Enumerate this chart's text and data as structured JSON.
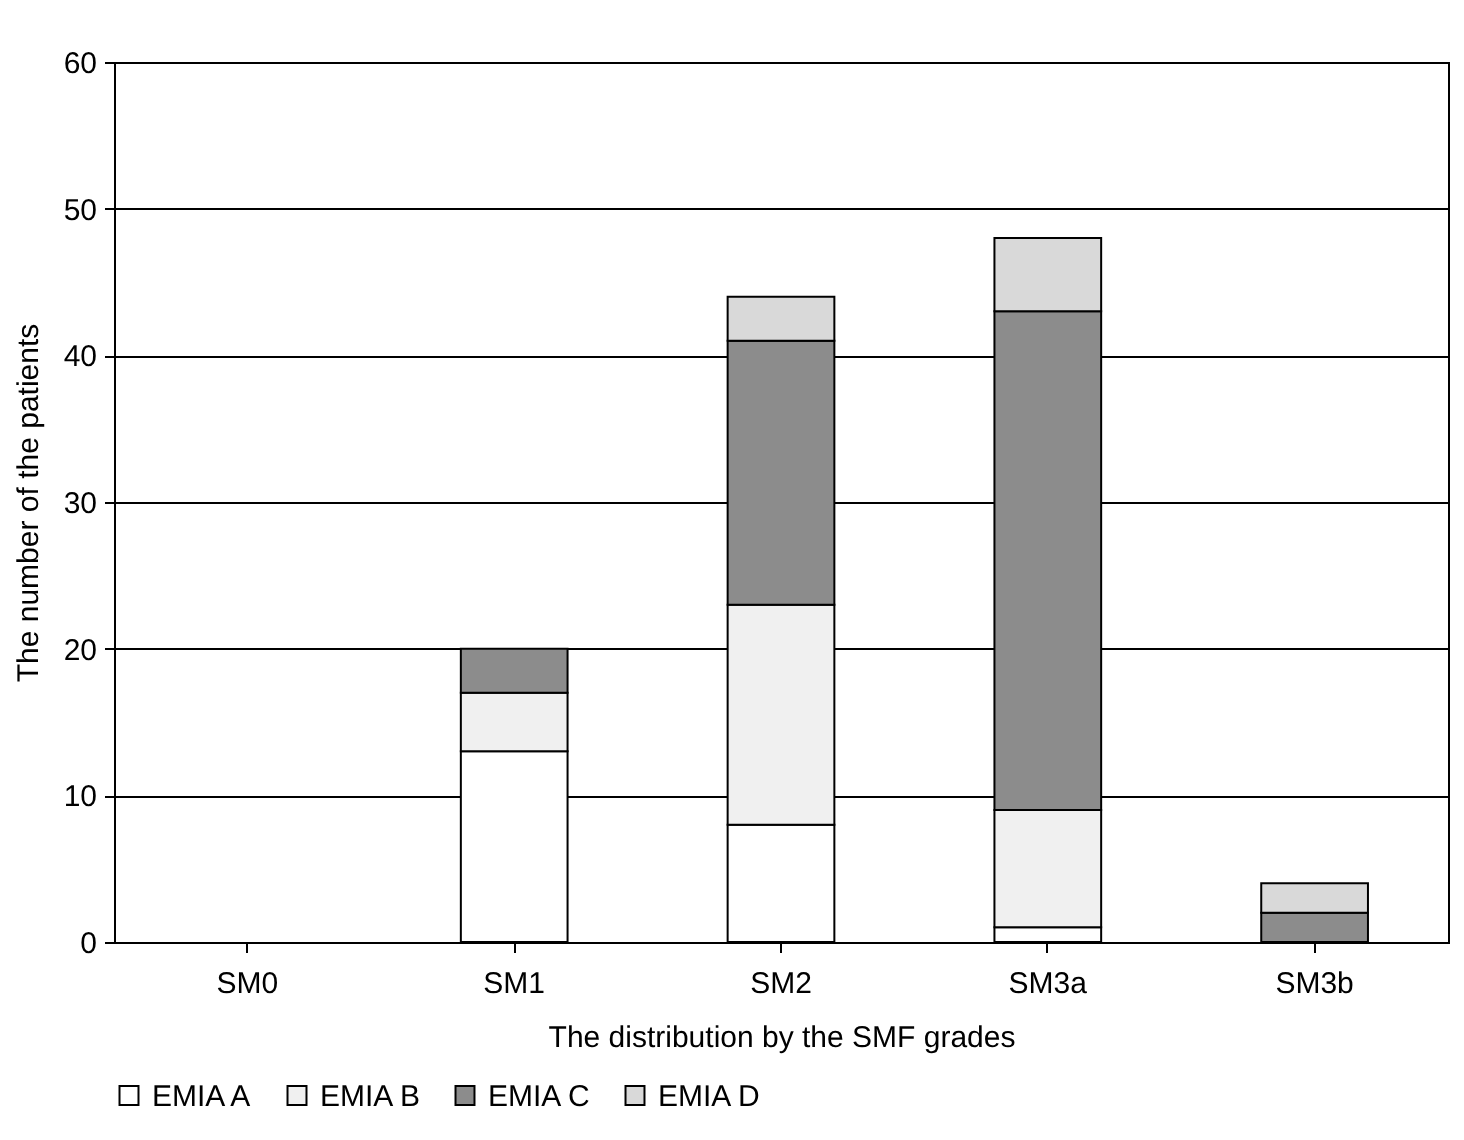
{
  "chart_data": {
    "type": "bar",
    "stacked": true,
    "xlabel": "The distribution by the SMF grades",
    "ylabel": "The number of the patients",
    "categories": [
      "SM0",
      "SM1",
      "SM2",
      "SM3a",
      "SM3b"
    ],
    "series": [
      {
        "name": "EMIA A",
        "color": "#ffffff",
        "values": [
          0,
          13,
          8,
          1,
          0
        ]
      },
      {
        "name": "EMIA B",
        "color": "#f0f0f0",
        "values": [
          0,
          4,
          15,
          8,
          0
        ]
      },
      {
        "name": "EMIA C",
        "color": "#8c8c8c",
        "values": [
          0,
          3,
          18,
          34,
          2
        ]
      },
      {
        "name": "EMIA D",
        "color": "#d9d9d9",
        "values": [
          0,
          0,
          3,
          5,
          2
        ]
      }
    ],
    "ylim": [
      0,
      60
    ],
    "yticks": [
      0,
      10,
      20,
      30,
      40,
      50,
      60
    ],
    "grid": "y",
    "legend": "bottom"
  }
}
